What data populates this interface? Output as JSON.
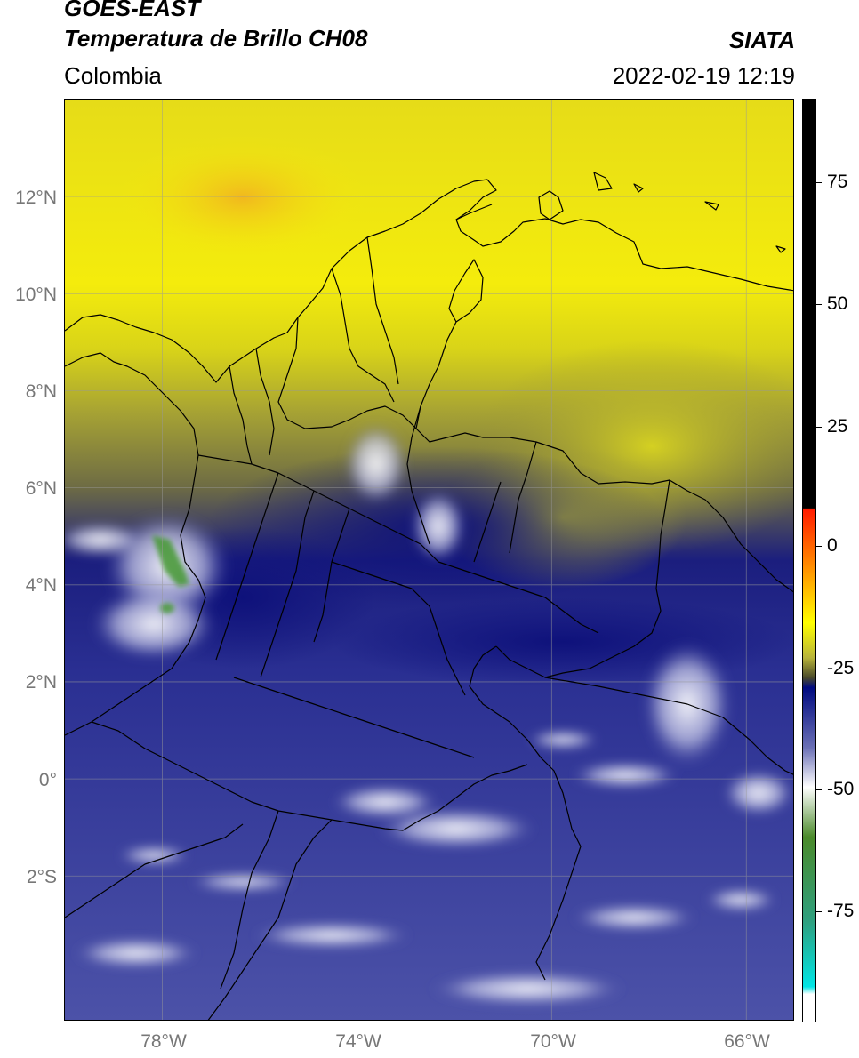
{
  "header": {
    "title_line1": "GOES-EAST",
    "title_line2": "Temperatura de Brillo CH08",
    "region": "Colombia",
    "agency": "SIATA",
    "timestamp": "2022-02-19 12:19"
  },
  "map": {
    "latitude_labels": [
      "12°N",
      "10°N",
      "8°N",
      "6°N",
      "4°N",
      "2°N",
      "0°",
      "2°S"
    ],
    "longitude_labels": [
      "78°W",
      "74°W",
      "70°W",
      "66°W"
    ],
    "extent": {
      "lon_min": -80,
      "lon_max": -65,
      "lat_min": -5,
      "lat_max": 14
    },
    "gridlines": true
  },
  "colorbar": {
    "tick_labels": [
      "75",
      "50",
      "25",
      "0",
      "-25",
      "-50",
      "-75"
    ],
    "tick_values": [
      75,
      50,
      25,
      0,
      -25,
      -50,
      -75
    ],
    "range": [
      -95,
      90
    ],
    "color_stops": [
      {
        "value": 90,
        "color": "#000000"
      },
      {
        "value": 8,
        "color": "#000000"
      },
      {
        "value": 7.9,
        "color": "#ff1a00"
      },
      {
        "value": -5,
        "color": "#ff9a00"
      },
      {
        "value": -15,
        "color": "#ffff00"
      },
      {
        "value": -22,
        "color": "#b8b43a"
      },
      {
        "value": -26,
        "color": "#4a4a2a"
      },
      {
        "value": -28,
        "color": "#000a80"
      },
      {
        "value": -40,
        "color": "#6a6fb5"
      },
      {
        "value": -48,
        "color": "#ffffff"
      },
      {
        "value": -58,
        "color": "#4a8a2a"
      },
      {
        "value": -75,
        "color": "#2ea080"
      },
      {
        "value": -88,
        "color": "#00e5e5"
      },
      {
        "value": -89.5,
        "color": "#ffffff"
      },
      {
        "value": -95,
        "color": "#ffffff"
      }
    ]
  },
  "colors": {
    "warm_yellow": "#f2ee10",
    "olive": "#8c8a30",
    "deep_blue": "#1a1d7a",
    "mid_blue": "#5a5fae",
    "cloud_white": "#e8e8f2",
    "cold_green": "#4a9a3a",
    "boundary": "#000000"
  }
}
